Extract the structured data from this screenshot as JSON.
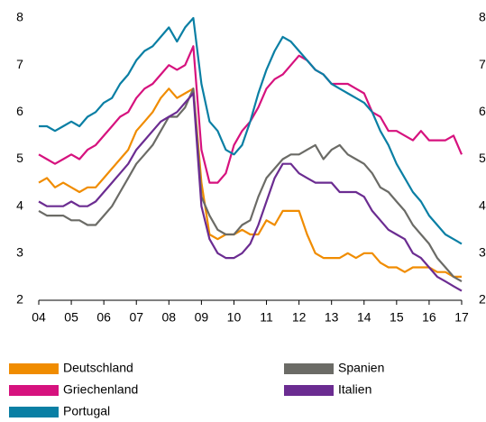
{
  "chart_data": {
    "type": "line",
    "x": [
      4,
      4.25,
      4.5,
      4.75,
      5,
      5.25,
      5.5,
      5.75,
      6,
      6.25,
      6.5,
      6.75,
      7,
      7.25,
      7.5,
      7.75,
      8,
      8.25,
      8.5,
      8.75,
      9,
      9.25,
      9.5,
      9.75,
      10,
      10.25,
      10.5,
      10.75,
      11,
      11.25,
      11.5,
      11.75,
      12,
      12.25,
      12.5,
      12.75,
      13,
      13.25,
      13.5,
      13.75,
      14,
      14.25,
      14.5,
      14.75,
      15,
      15.25,
      15.5,
      15.75,
      16,
      16.25,
      16.5,
      16.75,
      17
    ],
    "series": [
      {
        "name": "Deutschland",
        "color": "#f08c00",
        "values": [
          4.5,
          4.6,
          4.4,
          4.5,
          4.4,
          4.3,
          4.4,
          4.4,
          4.6,
          4.8,
          5.0,
          5.2,
          5.6,
          5.8,
          6.0,
          6.3,
          6.5,
          6.3,
          6.4,
          6.5,
          4.5,
          3.4,
          3.3,
          3.4,
          3.4,
          3.5,
          3.4,
          3.4,
          3.7,
          3.6,
          3.9,
          3.9,
          3.9,
          3.4,
          3.0,
          2.9,
          2.9,
          2.9,
          3.0,
          2.9,
          3.0,
          3.0,
          2.8,
          2.7,
          2.7,
          2.6,
          2.7,
          2.7,
          2.7,
          2.6,
          2.6,
          2.5,
          2.5
        ]
      },
      {
        "name": "Griechenland",
        "color": "#d6127e",
        "values": [
          5.1,
          5.0,
          4.9,
          5.0,
          5.1,
          5.0,
          5.2,
          5.3,
          5.5,
          5.7,
          5.9,
          6.0,
          6.3,
          6.5,
          6.6,
          6.8,
          7.0,
          6.9,
          7.0,
          7.4,
          5.2,
          4.5,
          4.5,
          4.7,
          5.3,
          5.6,
          5.8,
          6.1,
          6.5,
          6.7,
          6.8,
          7.0,
          7.2,
          7.1,
          6.9,
          6.8,
          6.6,
          6.6,
          6.6,
          6.5,
          6.4,
          6.0,
          5.9,
          5.6,
          5.6,
          5.5,
          5.4,
          5.6,
          5.4,
          5.4,
          5.4,
          5.5,
          5.1
        ]
      },
      {
        "name": "Portugal",
        "color": "#0a7fa4",
        "values": [
          5.7,
          5.7,
          5.6,
          5.7,
          5.8,
          5.7,
          5.9,
          6.0,
          6.2,
          6.3,
          6.6,
          6.8,
          7.1,
          7.3,
          7.4,
          7.6,
          7.8,
          7.5,
          7.8,
          8.0,
          6.6,
          5.8,
          5.6,
          5.2,
          5.1,
          5.3,
          5.8,
          6.4,
          6.9,
          7.3,
          7.6,
          7.5,
          7.3,
          7.1,
          6.9,
          6.8,
          6.6,
          6.5,
          6.4,
          6.3,
          6.2,
          6.0,
          5.6,
          5.3,
          4.9,
          4.6,
          4.3,
          4.1,
          3.8,
          3.6,
          3.4,
          3.3,
          3.2
        ]
      },
      {
        "name": "Spanien",
        "color": "#6b6b66",
        "values": [
          3.9,
          3.8,
          3.8,
          3.8,
          3.7,
          3.7,
          3.6,
          3.6,
          3.8,
          4.0,
          4.3,
          4.6,
          4.9,
          5.1,
          5.3,
          5.6,
          5.9,
          5.9,
          6.1,
          6.5,
          4.2,
          3.8,
          3.5,
          3.4,
          3.4,
          3.6,
          3.7,
          4.2,
          4.6,
          4.8,
          5.0,
          5.1,
          5.1,
          5.2,
          5.3,
          5.0,
          5.2,
          5.3,
          5.1,
          5.0,
          4.9,
          4.7,
          4.4,
          4.3,
          4.1,
          3.9,
          3.6,
          3.4,
          3.2,
          2.9,
          2.7,
          2.5,
          2.4
        ]
      },
      {
        "name": "Italien",
        "color": "#6b2c91",
        "values": [
          4.1,
          4.0,
          4.0,
          4.0,
          4.1,
          4.0,
          4.0,
          4.1,
          4.3,
          4.5,
          4.7,
          4.9,
          5.2,
          5.4,
          5.6,
          5.8,
          5.9,
          6.0,
          6.2,
          6.4,
          4.0,
          3.3,
          3.0,
          2.9,
          2.9,
          3.0,
          3.2,
          3.6,
          4.1,
          4.6,
          4.9,
          4.9,
          4.7,
          4.6,
          4.5,
          4.5,
          4.5,
          4.3,
          4.3,
          4.3,
          4.2,
          3.9,
          3.7,
          3.5,
          3.4,
          3.3,
          3.0,
          2.9,
          2.7,
          2.5,
          2.4,
          2.3,
          2.2
        ]
      }
    ],
    "xlim": [
      4,
      17
    ],
    "xticks": [
      {
        "value": 4,
        "label": "04"
      },
      {
        "value": 5,
        "label": "05"
      },
      {
        "value": 6,
        "label": "06"
      },
      {
        "value": 7,
        "label": "07"
      },
      {
        "value": 8,
        "label": "08"
      },
      {
        "value": 9,
        "label": "09"
      },
      10,
      11,
      12,
      13,
      14,
      15,
      16,
      17
    ],
    "ylim": [
      2,
      8
    ],
    "yticks": [
      2,
      3,
      4,
      5,
      6,
      7,
      8
    ],
    "y2lim": [
      2,
      8
    ],
    "y2ticks": [
      2,
      3,
      4,
      5,
      6,
      7,
      8
    ],
    "grid": false
  }
}
